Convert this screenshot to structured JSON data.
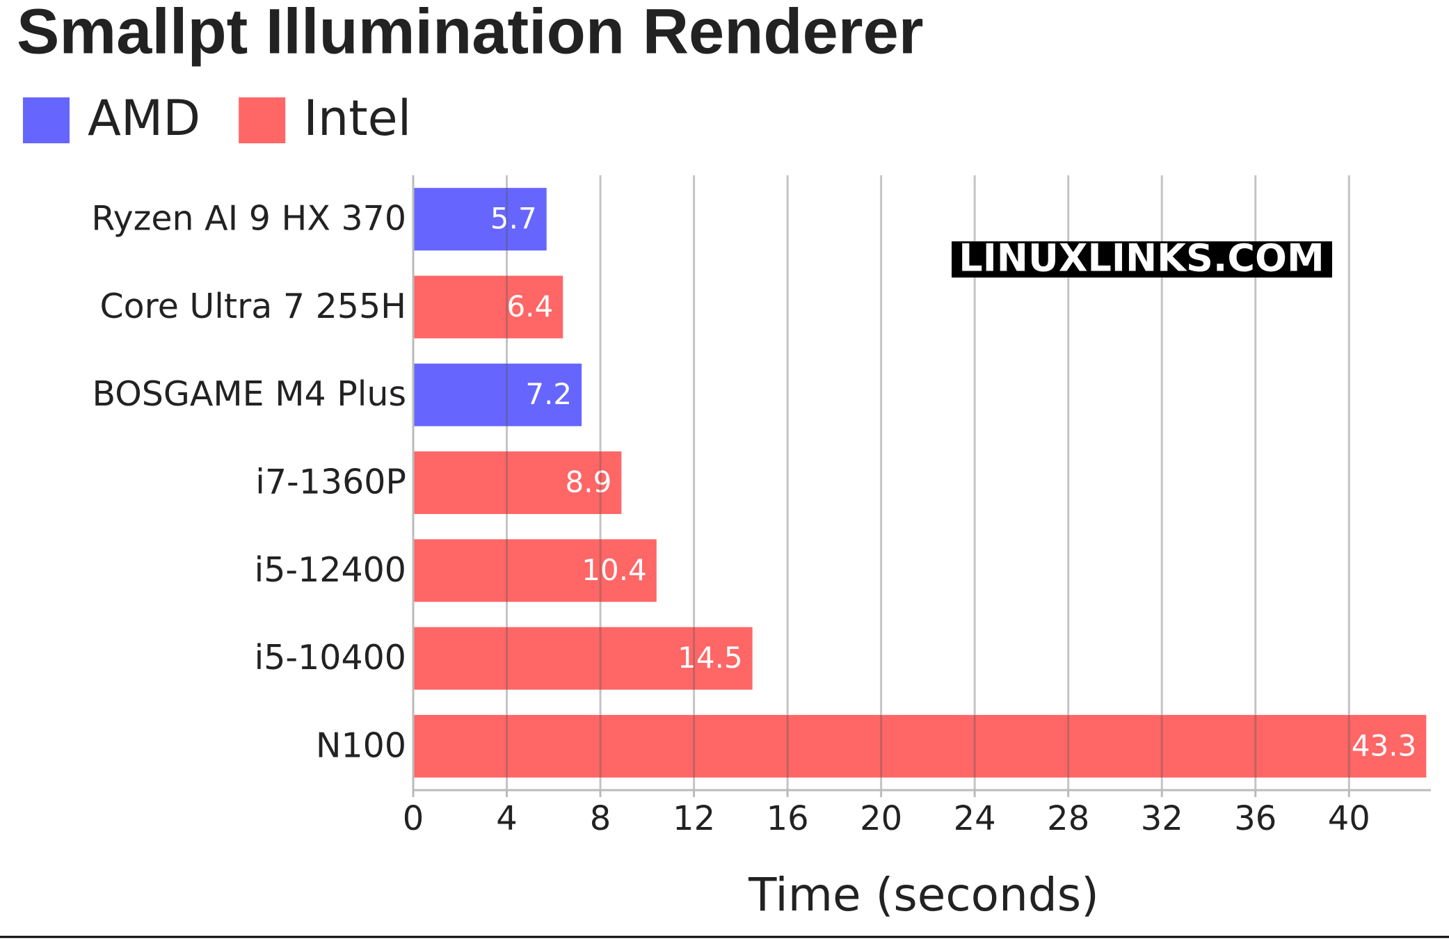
{
  "chart_data": {
    "type": "bar",
    "orientation": "horizontal",
    "title": "Smallpt Illumination Renderer",
    "x_label": "Time (seconds)",
    "watermark": "LINUXLINKS.COM",
    "categories": [
      "Ryzen AI 9 HX 370",
      "Core Ultra 7 255H",
      "BOSGAME M4 Plus",
      "i7-1360P",
      "i5-12400",
      "i5-10400",
      "N100"
    ],
    "series": [
      {
        "name": "AMD",
        "color": "#6666ff",
        "values": [
          5.7,
          null,
          7.2,
          null,
          null,
          null,
          null
        ]
      },
      {
        "name": "Intel",
        "color": "#ff6666",
        "values": [
          null,
          6.4,
          null,
          8.9,
          10.4,
          14.5,
          43.3
        ]
      }
    ],
    "xlim": [
      0,
      43.5
    ],
    "xticks": [
      0,
      4,
      8,
      12,
      16,
      20,
      24,
      28,
      32,
      36,
      40
    ],
    "grid": true,
    "legend": "top-left"
  }
}
